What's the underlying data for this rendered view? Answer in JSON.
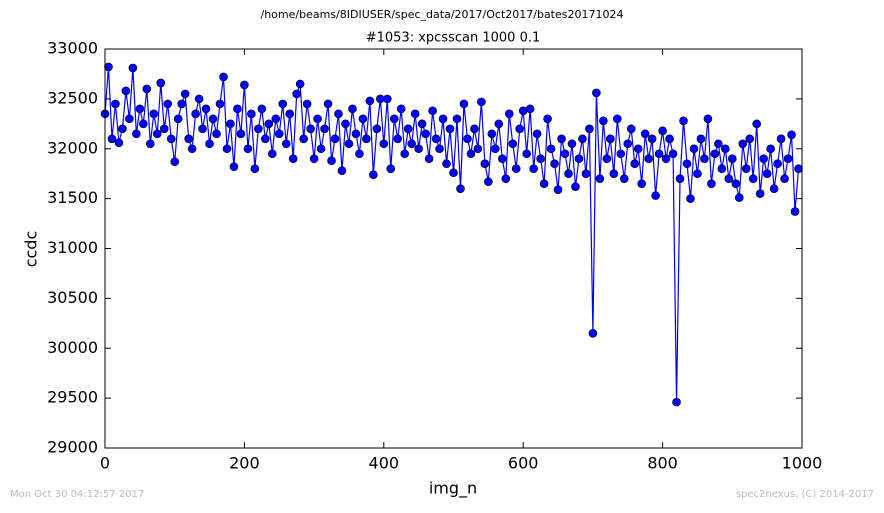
{
  "chart_data": {
    "type": "line",
    "suptitle": "/home/beams/8IDIUSER/spec_data/2017/Oct2017/bates20171024",
    "title": "#1053: xpcsscan 1000 0.1",
    "x_label": "img_n",
    "y_label": "ccdc",
    "footer_left": "Mon Oct 30 04:12:57 2017",
    "footer_right": "spec2nexus, (C) 2014-2017",
    "xlim": [
      0,
      1000
    ],
    "xticks": [
      0,
      200,
      400,
      600,
      800,
      1000
    ],
    "ylim": [
      29000,
      33000
    ],
    "yticks": [
      29000,
      29500,
      30000,
      30500,
      31000,
      31500,
      32000,
      32500,
      33000
    ],
    "x": [
      0,
      5,
      10,
      15,
      20,
      25,
      30,
      35,
      40,
      45,
      50,
      55,
      60,
      65,
      70,
      75,
      80,
      85,
      90,
      95,
      100,
      105,
      110,
      115,
      120,
      125,
      130,
      135,
      140,
      145,
      150,
      155,
      160,
      165,
      170,
      175,
      180,
      185,
      190,
      195,
      200,
      205,
      210,
      215,
      220,
      225,
      230,
      235,
      240,
      245,
      250,
      255,
      260,
      265,
      270,
      275,
      280,
      285,
      290,
      295,
      300,
      305,
      310,
      315,
      320,
      325,
      330,
      335,
      340,
      345,
      350,
      355,
      360,
      365,
      370,
      375,
      380,
      385,
      390,
      395,
      400,
      405,
      410,
      415,
      420,
      425,
      430,
      435,
      440,
      445,
      450,
      455,
      460,
      465,
      470,
      475,
      480,
      485,
      490,
      495,
      500,
      505,
      510,
      515,
      520,
      525,
      530,
      535,
      540,
      545,
      550,
      555,
      560,
      565,
      570,
      575,
      580,
      585,
      590,
      595,
      600,
      605,
      610,
      615,
      620,
      625,
      630,
      635,
      640,
      645,
      650,
      655,
      660,
      665,
      670,
      675,
      680,
      685,
      690,
      695,
      700,
      705,
      710,
      715,
      720,
      725,
      730,
      735,
      740,
      745,
      750,
      755,
      760,
      765,
      770,
      775,
      780,
      785,
      790,
      795,
      800,
      805,
      810,
      815,
      820,
      825,
      830,
      835,
      840,
      845,
      850,
      855,
      860,
      865,
      870,
      875,
      880,
      885,
      890,
      895,
      900,
      905,
      910,
      915,
      920,
      925,
      930,
      935,
      940,
      945,
      950,
      955,
      960,
      965,
      970,
      975,
      980,
      985,
      990,
      995
    ],
    "series": [
      {
        "color": "#0000ff",
        "values": [
          32350,
          32820,
          32100,
          32450,
          32060,
          32200,
          32580,
          32300,
          32810,
          32150,
          32400,
          32250,
          32600,
          32050,
          32350,
          32150,
          32660,
          32200,
          32450,
          32100,
          31870,
          32300,
          32450,
          32550,
          32100,
          32000,
          32350,
          32500,
          32200,
          32400,
          32050,
          32300,
          32150,
          32450,
          32720,
          32000,
          32250,
          31820,
          32400,
          32150,
          32640,
          32000,
          32350,
          31800,
          32200,
          32400,
          32100,
          32250,
          31950,
          32300,
          32150,
          32450,
          32050,
          32350,
          31900,
          32550,
          32650,
          32100,
          32450,
          32200,
          31900,
          32300,
          32000,
          32200,
          32450,
          31880,
          32100,
          32350,
          31780,
          32250,
          32050,
          32400,
          32150,
          31950,
          32300,
          32100,
          32480,
          31740,
          32200,
          32500,
          32050,
          32500,
          31800,
          32300,
          32100,
          32400,
          31950,
          32200,
          32050,
          32350,
          32000,
          32250,
          32150,
          31900,
          32380,
          32100,
          32000,
          32300,
          31850,
          32200,
          31760,
          32300,
          31600,
          32450,
          32100,
          31950,
          32200,
          32000,
          32470,
          31850,
          31670,
          32150,
          32000,
          32250,
          31900,
          31700,
          32350,
          32050,
          31800,
          32200,
          32380,
          31950,
          32400,
          31800,
          32150,
          31900,
          31650,
          32300,
          32000,
          31850,
          31590,
          32100,
          31950,
          31750,
          32050,
          31620,
          31900,
          32100,
          31750,
          32200,
          30150,
          32560,
          31700,
          32280,
          31900,
          32100,
          31750,
          32300,
          31950,
          31700,
          32050,
          32200,
          31850,
          32000,
          31650,
          32150,
          31900,
          32100,
          31530,
          31950,
          32180,
          31900,
          32100,
          31950,
          29460,
          31700,
          32280,
          31850,
          31500,
          32000,
          31750,
          32100,
          31900,
          32300,
          31650,
          31950,
          32050,
          31800,
          32000,
          31700,
          31900,
          31650,
          31510,
          32050,
          31800,
          32100,
          31700,
          32250,
          31550,
          31900,
          31750,
          32000,
          31600,
          31850,
          32100,
          31700,
          31900,
          32140,
          31370,
          31800
        ]
      }
    ]
  }
}
